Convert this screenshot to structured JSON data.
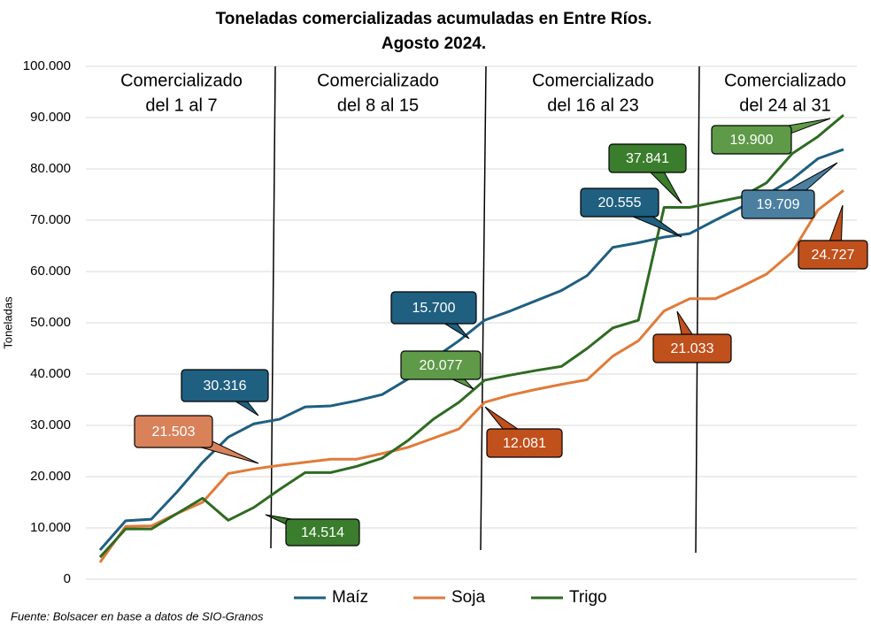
{
  "chart_data": {
    "type": "line",
    "title": "Toneladas comercializadas acumuladas en Entre Ríos.",
    "subtitle": "Agosto 2024.",
    "y_label": "Toneladas",
    "source": "Fuente: Bolsacer en base a datos de SIO-Granos",
    "grid": true,
    "legend": "bottom",
    "categories": [
      null,
      null,
      null,
      null,
      null,
      null,
      null,
      null,
      null,
      null,
      null,
      null,
      null,
      null,
      null,
      null,
      null,
      null,
      null,
      null,
      null,
      null,
      null,
      null,
      null,
      null,
      null,
      null,
      null,
      null
    ],
    "ylim": [
      0,
      100000
    ],
    "yticks": [
      0,
      {
        "value": 10000,
        "label": "10.000"
      },
      {
        "value": 20000,
        "label": "20.000"
      },
      {
        "value": 30000,
        "label": "30.000"
      },
      {
        "value": 40000,
        "label": "40.000"
      },
      {
        "value": 50000,
        "label": "50.000"
      },
      {
        "value": 60000,
        "label": "60.000"
      },
      {
        "value": 70000,
        "label": "70.000"
      },
      {
        "value": 80000,
        "label": "80.000"
      },
      {
        "value": 90000,
        "label": "90.000"
      },
      {
        "value": 100000,
        "label": "100.000"
      }
    ],
    "series": [
      {
        "name": "Maíz",
        "color": "#1f5f80",
        "values": [
          5700,
          11400,
          11700,
          17000,
          22800,
          27700,
          30300,
          31200,
          33600,
          33800,
          34800,
          36000,
          39000,
          43000,
          46500,
          50500,
          52300,
          54300,
          56300,
          59200,
          64700,
          65600,
          66700,
          67400,
          70000,
          72500,
          75000,
          78000,
          82000,
          83800
        ]
      },
      {
        "name": "Soja",
        "color": "#e07b39",
        "values": [
          3300,
          10300,
          10400,
          12800,
          15000,
          20600,
          21500,
          22200,
          22800,
          23400,
          23400,
          24500,
          25700,
          27500,
          29300,
          34500,
          35900,
          37000,
          38000,
          38900,
          43500,
          46500,
          52300,
          54700,
          54700,
          57000,
          59500,
          63800,
          72000,
          75800
        ]
      },
      {
        "name": "Trigo",
        "color": "#2e6b22",
        "values": [
          4300,
          9800,
          9800,
          12800,
          15800,
          11500,
          14000,
          17500,
          20800,
          20800,
          22000,
          23600,
          27000,
          31200,
          34500,
          38800,
          39800,
          40700,
          41500,
          45000,
          49000,
          50500,
          72500,
          72500,
          73500,
          74500,
          77300,
          83000,
          86300,
          90500
        ]
      }
    ],
    "sections": [
      [
        "Comercializado",
        "del 1 al 7"
      ],
      [
        "Comercializado",
        "del 8 al 15"
      ],
      [
        "Comercializado",
        "del 16 al 23"
      ],
      [
        "Comercializado",
        "del 24 al 31"
      ]
    ],
    "annotations": [
      {
        "text": "30.316",
        "color": "#1f5f80"
      },
      {
        "text": "21.503",
        "color": "#d9825a"
      },
      {
        "text": "14.514",
        "color": "#3a7d2c"
      },
      {
        "text": "15.700",
        "color": "#1f5f80"
      },
      {
        "text": "20.077",
        "color": "#5e9a48"
      },
      {
        "text": "12.081",
        "color": "#c0501c"
      },
      {
        "text": "37.841",
        "color": "#3a7d2c"
      },
      {
        "text": "20.555",
        "color": "#1f5f80"
      },
      {
        "text": "21.033",
        "color": "#c0501c"
      },
      {
        "text": "19.900",
        "color": "#5e9a48"
      },
      {
        "text": "19.709",
        "color": "#4a7fa0"
      },
      {
        "text": "24.727",
        "color": "#c0501c"
      }
    ]
  }
}
